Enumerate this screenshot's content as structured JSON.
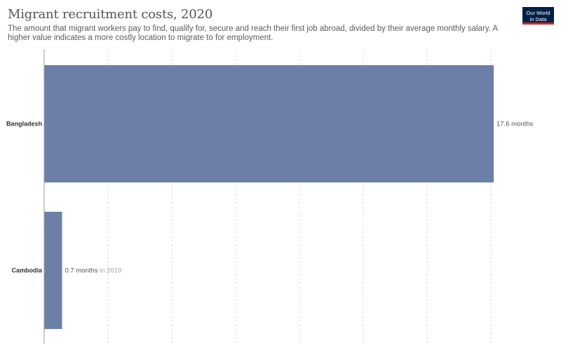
{
  "header": {
    "title": "Migrant recruitment costs, 2020",
    "subtitle": "The amount that migrant workers pay to find, qualify for, secure and reach their first job abroad, divided by their average monthly salary. A higher value indicates a more costly location to migrate to for employment."
  },
  "logo": {
    "line1": "Our World",
    "line2": "in Data",
    "bg_color": "#002147",
    "accent_color": "#ce261e"
  },
  "chart_data": {
    "type": "bar",
    "orientation": "horizontal",
    "categories": [
      "Bangladesh",
      "Cambodia"
    ],
    "values": [
      17.6,
      0.7
    ],
    "value_labels": [
      "17.6 months",
      "0.7 months"
    ],
    "value_notes": [
      "",
      "in 2019"
    ],
    "bar_color": "#6b7fa8",
    "xlim": [
      0,
      17.6
    ],
    "grid": true
  }
}
